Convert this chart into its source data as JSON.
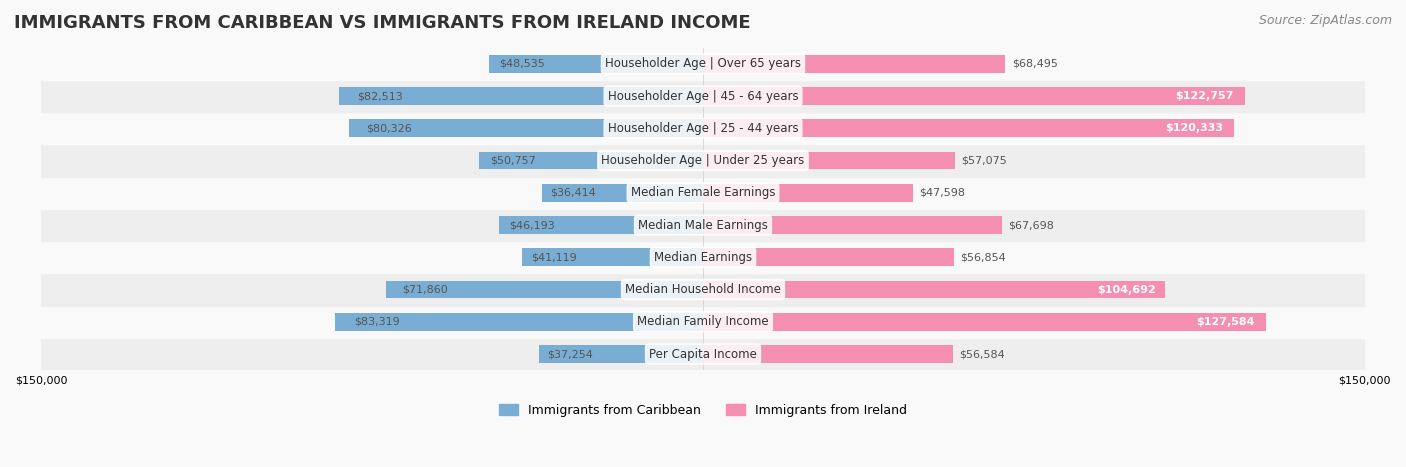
{
  "title": "IMMIGRANTS FROM CARIBBEAN VS IMMIGRANTS FROM IRELAND INCOME",
  "source": "Source: ZipAtlas.com",
  "categories": [
    "Per Capita Income",
    "Median Family Income",
    "Median Household Income",
    "Median Earnings",
    "Median Male Earnings",
    "Median Female Earnings",
    "Householder Age | Under 25 years",
    "Householder Age | 25 - 44 years",
    "Householder Age | 45 - 64 years",
    "Householder Age | Over 65 years"
  ],
  "caribbean_values": [
    37254,
    83319,
    71860,
    41119,
    46193,
    36414,
    50757,
    80326,
    82513,
    48535
  ],
  "ireland_values": [
    56584,
    127584,
    104692,
    56854,
    67698,
    47598,
    57075,
    120333,
    122757,
    68495
  ],
  "caribbean_color": "#7aadd4",
  "ireland_color": "#f48fb1",
  "caribbean_label": "Immigrants from Caribbean",
  "ireland_label": "Immigrants from Ireland",
  "max_value": 150000,
  "bg_color": "#f5f5f5",
  "row_bg_color": "#ececec",
  "title_fontsize": 13,
  "source_fontsize": 9,
  "label_fontsize": 8.5,
  "value_fontsize": 8,
  "legend_fontsize": 9
}
